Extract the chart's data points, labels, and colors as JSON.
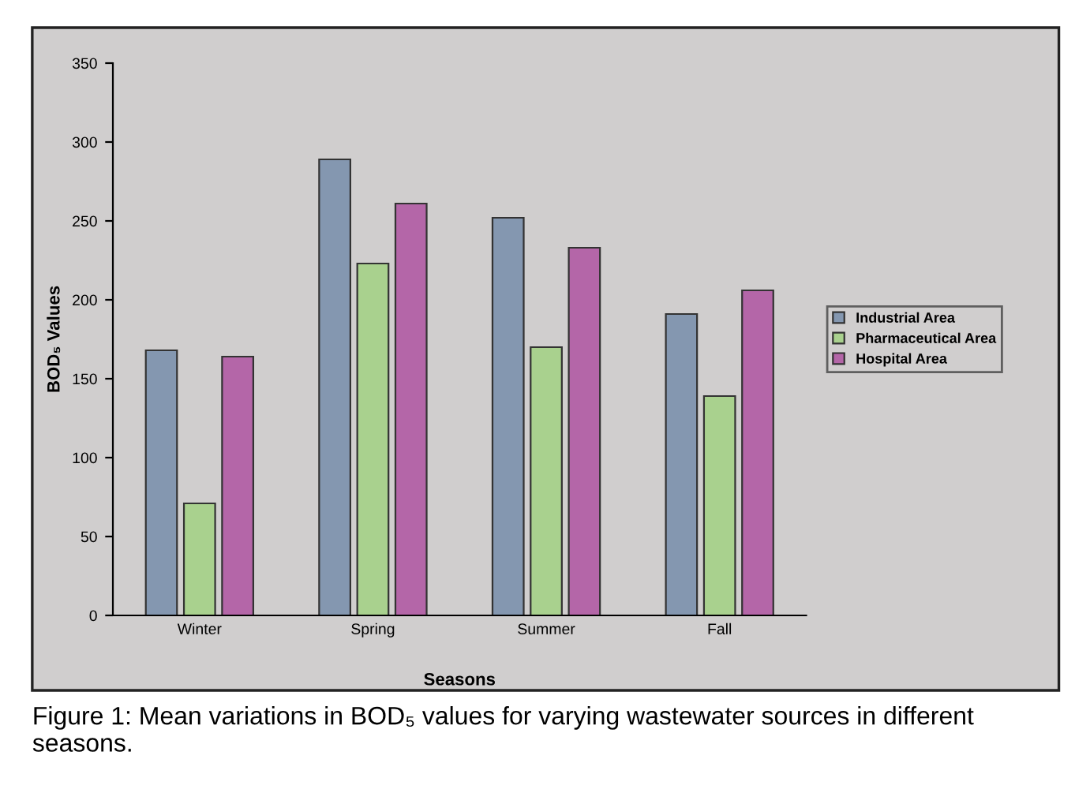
{
  "chart_data": {
    "type": "bar",
    "categories": [
      "Winter",
      "Spring",
      "Summer",
      "Fall"
    ],
    "series": [
      {
        "name": "Industrial Area",
        "color": "#8497b0",
        "values": [
          168,
          289,
          252,
          191
        ]
      },
      {
        "name": "Pharmaceutical Area",
        "color": "#a9d18e",
        "values": [
          71,
          223,
          170,
          139
        ]
      },
      {
        "name": "Hospital Area",
        "color": "#b466a8",
        "values": [
          164,
          261,
          233,
          206
        ]
      }
    ],
    "xlabel": "Seasons",
    "ylabel": "BOD₅ Values",
    "ylim": [
      0,
      350
    ],
    "yticks": [
      0,
      50,
      100,
      150,
      200,
      250,
      300,
      350
    ],
    "grid": false,
    "legend": "right",
    "annotations": [
      "Figure 1: Mean variations in BOD₅ values for varying wastewater sources in different seasons."
    ]
  }
}
